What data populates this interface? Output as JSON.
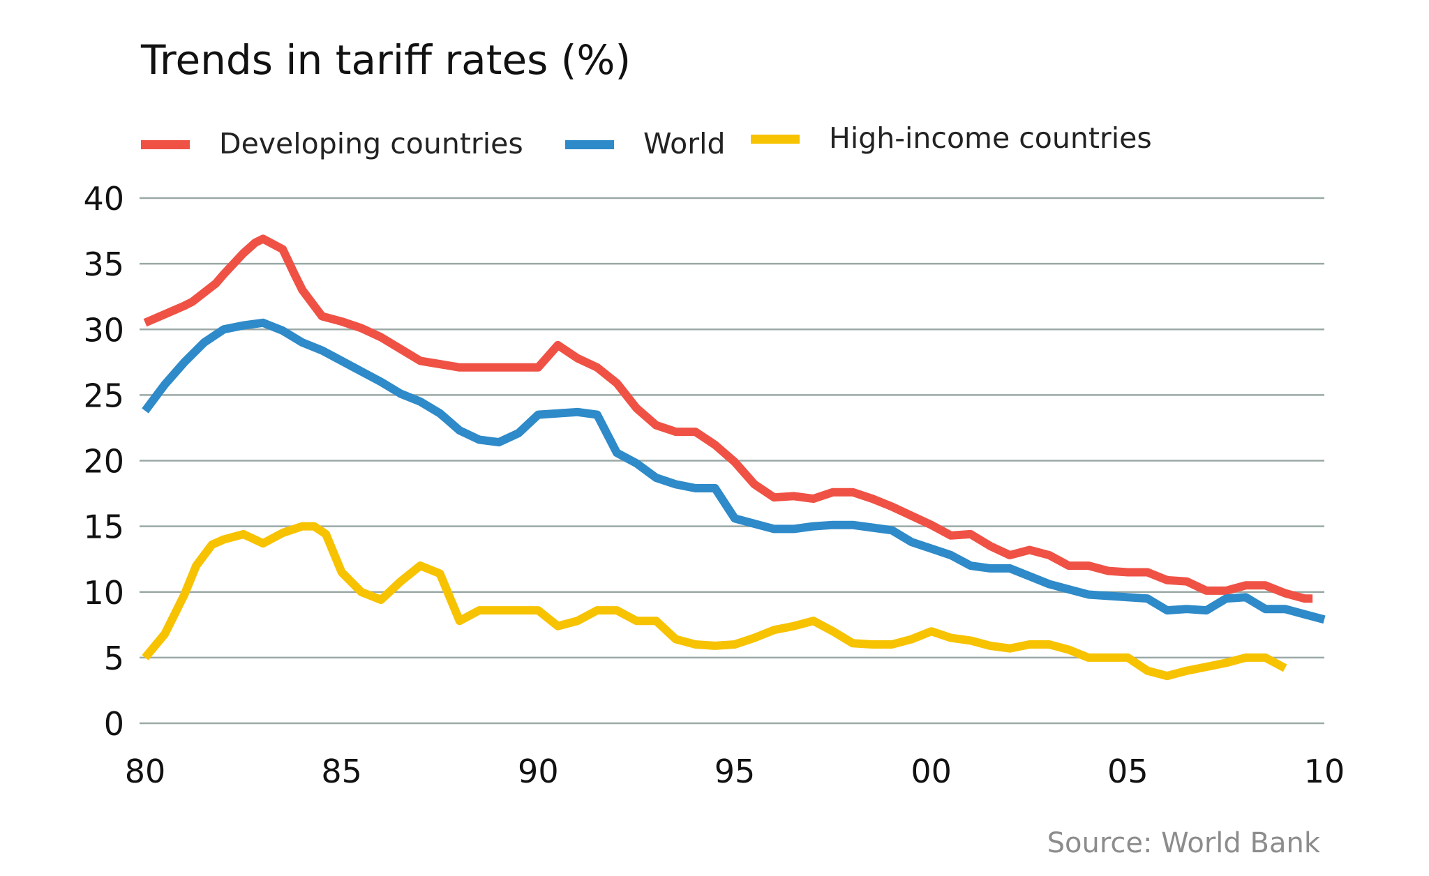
{
  "chart_data": {
    "type": "line",
    "title": "Trends in tariff rates (%)",
    "xlabel": "",
    "ylabel": "",
    "x_tick_labels": [
      "80",
      "85",
      "90",
      "95",
      "00",
      "05",
      "10"
    ],
    "y_tick_labels": [
      "0",
      "5",
      "10",
      "15",
      "20",
      "25",
      "30",
      "35",
      "40"
    ],
    "ylim": [
      0,
      40
    ],
    "xlim": [
      1980,
      2010
    ],
    "grid": true,
    "legend_position": "top",
    "source": "Source: World Bank",
    "series": [
      {
        "name": "Developing countries",
        "color": "#ef5245",
        "x": [
          1980,
          1981,
          1981.2,
          1981.8,
          1982,
          1982.5,
          1982.8,
          1983,
          1983.5,
          1983.8,
          1984,
          1984.5,
          1985,
          1985.5,
          1986,
          1987,
          1988,
          1989,
          1989.5,
          1990,
          1990.5,
          1991,
          1991.5,
          1992,
          1992.5,
          1993,
          1993.5,
          1994,
          1994.5,
          1995,
          1995.5,
          1996,
          1996.5,
          1997,
          1997.5,
          1998,
          1998.5,
          1999,
          1999.5,
          2000,
          2000.5,
          2001,
          2001.5,
          2002,
          2002.5,
          2003,
          2003.5,
          2004,
          2004.5,
          2005,
          2005.5,
          2006,
          2006.5,
          2007,
          2007.5,
          2008,
          2008.5,
          2009,
          2009.5,
          2009.7
        ],
        "values": [
          30.5,
          31.8,
          32.1,
          33.5,
          34.2,
          35.8,
          36.6,
          36.9,
          36.1,
          34.2,
          33.0,
          31.0,
          30.6,
          30.1,
          29.4,
          27.6,
          27.1,
          27.1,
          27.1,
          27.1,
          28.8,
          27.8,
          27.1,
          25.9,
          24.0,
          22.7,
          22.2,
          22.2,
          21.2,
          19.9,
          18.2,
          17.2,
          17.3,
          17.1,
          17.6,
          17.6,
          17.1,
          16.5,
          15.8,
          15.1,
          14.3,
          14.4,
          13.5,
          12.8,
          13.2,
          12.8,
          12.0,
          12.0,
          11.6,
          11.5,
          11.5,
          10.9,
          10.8,
          10.1,
          10.1,
          10.5,
          10.5,
          9.9,
          9.5,
          9.5
        ]
      },
      {
        "name": "World",
        "color": "#2e8ac8",
        "x": [
          1980,
          1980.5,
          1981,
          1981.5,
          1982,
          1982.5,
          1983,
          1983.5,
          1984,
          1984.5,
          1985,
          1985.5,
          1986,
          1986.5,
          1987,
          1987.5,
          1988,
          1988.5,
          1989,
          1989.5,
          1990,
          1990.5,
          1991,
          1991.5,
          1992,
          1992.5,
          1993,
          1993.5,
          1994,
          1994.5,
          1995,
          1995.5,
          1996,
          1996.5,
          1997,
          1997.5,
          1998,
          1998.5,
          1999,
          1999.5,
          2000,
          2000.5,
          2001,
          2001.5,
          2002,
          2002.5,
          2003,
          2003.5,
          2004,
          2004.5,
          2005,
          2005.5,
          2006,
          2006.5,
          2007,
          2007.5,
          2008,
          2008.5,
          2009,
          2009.5,
          2010
        ],
        "values": [
          23.8,
          25.8,
          27.5,
          29.0,
          30.0,
          30.3,
          30.5,
          29.9,
          29.0,
          28.4,
          27.6,
          26.8,
          26.0,
          25.1,
          24.5,
          23.6,
          22.3,
          21.6,
          21.4,
          22.1,
          23.5,
          23.6,
          23.7,
          23.5,
          20.6,
          19.8,
          18.7,
          18.2,
          17.9,
          17.9,
          15.6,
          15.2,
          14.8,
          14.8,
          15.0,
          15.1,
          15.1,
          14.9,
          14.7,
          13.8,
          13.3,
          12.8,
          12.0,
          11.8,
          11.8,
          11.2,
          10.6,
          10.2,
          9.8,
          9.7,
          9.6,
          9.5,
          8.6,
          8.7,
          8.6,
          9.5,
          9.6,
          8.7,
          8.7,
          8.3,
          7.9
        ]
      },
      {
        "name": "High-income countries",
        "color": "#f7c200",
        "x": [
          1980,
          1980.5,
          1981,
          1981.3,
          1981.7,
          1982,
          1982.5,
          1983,
          1983.5,
          1984,
          1984.3,
          1984.6,
          1985,
          1985.5,
          1986,
          1986.5,
          1987,
          1987.5,
          1988,
          1988.5,
          1989,
          1989.5,
          1990,
          1990.5,
          1991,
          1991.5,
          1992,
          1992.5,
          1993,
          1993.5,
          1994,
          1994.5,
          1995,
          1995.5,
          1996,
          1996.5,
          1997,
          1997.5,
          1998,
          1998.5,
          1999,
          1999.5,
          2000,
          2000.5,
          2001,
          2001.5,
          2002,
          2002.5,
          2003,
          2003.5,
          2004,
          2004.5,
          2005,
          2005.5,
          2006,
          2006.5,
          2007,
          2007.5,
          2008,
          2008.5,
          2009
        ],
        "values": [
          5.0,
          6.8,
          9.8,
          12.0,
          13.6,
          14.0,
          14.4,
          13.7,
          14.5,
          15.0,
          15.0,
          14.4,
          11.5,
          10.0,
          9.4,
          10.8,
          12.0,
          11.4,
          7.8,
          8.6,
          8.6,
          8.6,
          8.6,
          7.4,
          7.8,
          8.6,
          8.6,
          7.8,
          7.8,
          6.4,
          6.0,
          5.9,
          6.0,
          6.5,
          7.1,
          7.4,
          7.8,
          7.0,
          6.1,
          6.0,
          6.0,
          6.4,
          7.0,
          6.5,
          6.3,
          5.9,
          5.7,
          6.0,
          6.0,
          5.6,
          5.0,
          5.0,
          5.0,
          4.0,
          3.6,
          4.0,
          4.3,
          4.6,
          5.0,
          5.0,
          4.2
        ]
      }
    ]
  }
}
